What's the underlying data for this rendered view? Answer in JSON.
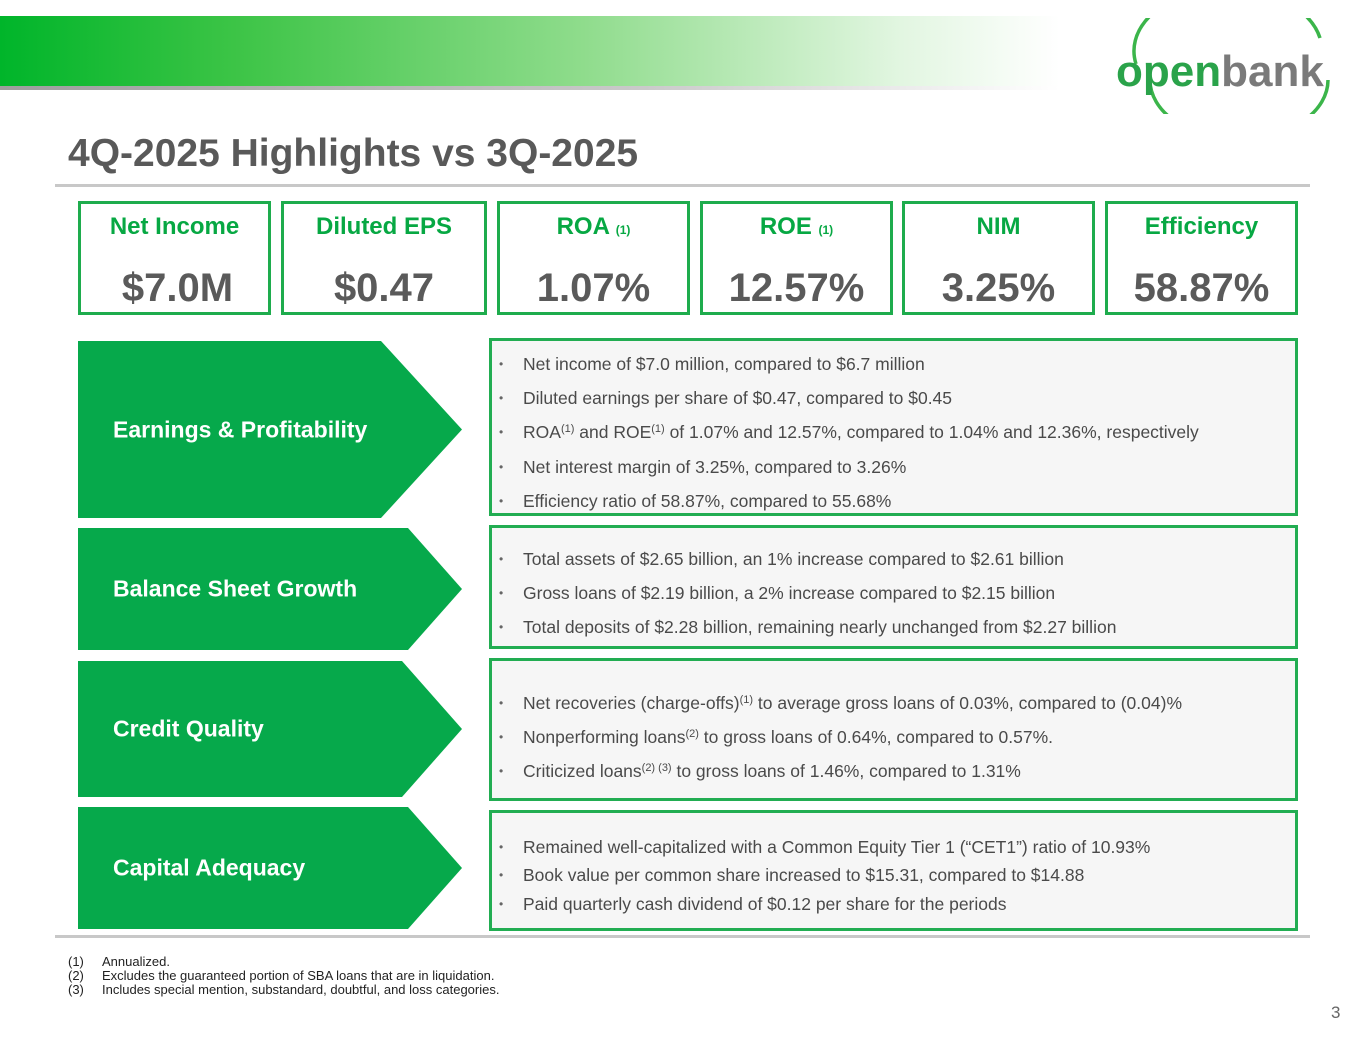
{
  "brand": {
    "logo_text": "openbank"
  },
  "title": "4Q-2025 Highlights vs 3Q-2025",
  "kpis": [
    {
      "label": "Net Income",
      "sup": "",
      "value": "$7.0M"
    },
    {
      "label": "Diluted EPS",
      "sup": "",
      "value": "$0.47"
    },
    {
      "label": "ROA",
      "sup": "(1)",
      "value": "1.07%"
    },
    {
      "label": "ROE",
      "sup": "(1)",
      "value": "12.57%"
    },
    {
      "label": "NIM",
      "sup": "",
      "value": "3.25%"
    },
    {
      "label": "Efficiency",
      "sup": "",
      "value": "58.87%"
    }
  ],
  "sections": [
    {
      "label": "Earnings & Profitability",
      "bullets": [
        {
          "parts": [
            {
              "t": "Net income of $7.0 million, compared to $6.7 million"
            }
          ]
        },
        {
          "parts": [
            {
              "t": "Diluted earnings per share of $0.47, compared to $0.45"
            }
          ]
        },
        {
          "parts": [
            {
              "t": "ROA"
            },
            {
              "sup": "(1)"
            },
            {
              "t": " and ROE"
            },
            {
              "sup": "(1)"
            },
            {
              "t": " of 1.07% and 12.57%, compared to 1.04% and 12.36%, respectively"
            }
          ]
        },
        {
          "parts": [
            {
              "t": "Net interest margin of 3.25%, compared to 3.26%"
            }
          ]
        },
        {
          "parts": [
            {
              "t": "Efficiency ratio of 58.87%, compared to 55.68%"
            }
          ]
        }
      ]
    },
    {
      "label": "Balance Sheet Growth",
      "bullets": [
        {
          "parts": [
            {
              "t": "Total assets of $2.65 billion, an 1% increase compared to $2.61 billion"
            }
          ]
        },
        {
          "parts": [
            {
              "t": "Gross loans of $2.19 billion, a 2% increase compared to $2.15 billion"
            }
          ]
        },
        {
          "parts": [
            {
              "t": "Total deposits of $2.28 billion, remaining nearly unchanged from $2.27 billion"
            }
          ]
        }
      ]
    },
    {
      "label": "Credit Quality",
      "bullets": [
        {
          "parts": [
            {
              "t": "Net recoveries (charge-offs)"
            },
            {
              "sup": "(1)"
            },
            {
              "t": " to average gross loans of 0.03%, compared to (0.04)%"
            }
          ]
        },
        {
          "parts": [
            {
              "t": "Nonperforming loans"
            },
            {
              "sup": "(2)"
            },
            {
              "t": " to gross loans of 0.64%, compared to 0.57%."
            }
          ]
        },
        {
          "parts": [
            {
              "t": "Criticized loans"
            },
            {
              "sup": "(2) (3)"
            },
            {
              "t": " to gross loans of 1.46%, compared to 1.31%"
            }
          ]
        }
      ]
    },
    {
      "label": "Capital Adequacy",
      "bullets": [
        {
          "parts": [
            {
              "t": "Remained well-capitalized with a Common Equity Tier 1 (“CET1”) ratio of 10.93%"
            }
          ]
        },
        {
          "parts": [
            {
              "t": "Book value per common share increased to $15.31, compared to $14.88"
            }
          ]
        },
        {
          "parts": [
            {
              "t": "Paid quarterly cash dividend of $0.12 per share for the periods"
            }
          ]
        }
      ]
    }
  ],
  "footnotes": [
    {
      "mark": "(1)",
      "text": "Annualized."
    },
    {
      "mark": "(2)",
      "text": "Excludes the guaranteed portion of SBA loans that are in liquidation."
    },
    {
      "mark": "(3)",
      "text": "Includes special mention, substandard, doubtful, and loss categories."
    }
  ],
  "page_number": "3",
  "colors": {
    "brand_green": "#06a94b",
    "kpi_border": "#1eac4d",
    "title_gray": "#595959"
  }
}
